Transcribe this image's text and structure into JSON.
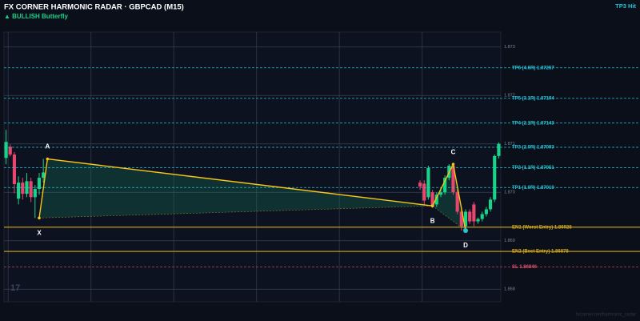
{
  "chart_data": {
    "type": "candlestick",
    "title": "FX CORNER HARMONIC RADAR  ·  GBPCAD (M15)",
    "subtitle": "▲ BULLISH  Butterfly",
    "status": "TP3 Hit",
    "watermark": "17",
    "footer": "fxcorner.net/harmonic_radar",
    "up_color": "#18d488",
    "down_color": "#e8466f",
    "xlim": [
      -0.5,
      119.5
    ],
    "xgrid": [
      0.5,
      20.5,
      40.5,
      60.5,
      80.5,
      100.5
    ],
    "ylim": [
      1.86774,
      1.87331
    ],
    "yticks": [
      1.868,
      1.869,
      {
        "value": 1.87,
        "label": "1.870"
      },
      1.871,
      1.872,
      1.873
    ],
    "grid": true,
    "candles": {
      "x": [
        0,
        1,
        2,
        3,
        4,
        5,
        6,
        7,
        8,
        9,
        100,
        101,
        102,
        103,
        104,
        105,
        106,
        107,
        108,
        109,
        110,
        111,
        112,
        113,
        114,
        115,
        116,
        117,
        118,
        119
      ],
      "open": [
        1.87071,
        1.87094,
        1.87078,
        1.86987,
        1.8702,
        1.86997,
        1.87023,
        1.8699,
        1.87007,
        1.8703,
        1.8702,
        1.87018,
        1.8699,
        1.87,
        1.86975,
        1.86995,
        1.87,
        1.8703,
        1.87055,
        1.87,
        1.8696,
        1.8693,
        1.8696,
        1.86975,
        1.8694,
        1.86945,
        1.86955,
        1.86965,
        1.86985,
        1.87075
      ],
      "high": [
        1.87129,
        1.87099,
        1.87083,
        1.87033,
        1.8703,
        1.8704,
        1.8703,
        1.87015,
        1.8704,
        1.87069,
        1.87025,
        1.87025,
        1.87055,
        1.87005,
        1.87,
        1.8701,
        1.87035,
        1.87058,
        1.87058,
        1.87005,
        1.86965,
        1.86965,
        1.86965,
        1.8698,
        1.86948,
        1.8696,
        1.8697,
        1.8699,
        1.87078,
        1.87103
      ],
      "low": [
        1.87058,
        1.87074,
        1.86998,
        1.86975,
        1.86985,
        1.8699,
        1.8698,
        1.86947,
        1.86995,
        1.8702,
        1.87005,
        1.86975,
        1.86985,
        1.86968,
        1.8697,
        1.8699,
        1.86995,
        1.87025,
        1.86995,
        1.86955,
        1.86921,
        1.86921,
        1.86935,
        1.8693,
        1.86935,
        1.8694,
        1.8695,
        1.8696,
        1.8698,
        1.8707
      ],
      "close": [
        1.87104,
        1.87078,
        1.87017,
        1.8702,
        1.86997,
        1.87023,
        1.8699,
        1.87007,
        1.8703,
        1.87041,
        1.87012,
        1.86983,
        1.8705,
        1.86972,
        1.86995,
        1.87,
        1.8703,
        1.87055,
        1.87,
        1.8696,
        1.8693,
        1.8696,
        1.8694,
        1.8694,
        1.86945,
        1.86955,
        1.86965,
        1.86985,
        1.87075,
        1.871
      ]
    },
    "pattern": {
      "color": "#f5c518",
      "points": [
        {
          "label": "X",
          "x": 8,
          "price": 1.86947
        },
        {
          "label": "A",
          "x": 10,
          "price": 1.87069
        },
        {
          "label": "B",
          "x": 103,
          "price": 1.86972
        },
        {
          "label": "C",
          "x": 108,
          "price": 1.87058
        },
        {
          "label": "D",
          "x": 111,
          "price": 1.86921
        }
      ]
    },
    "levels": [
      {
        "label": "TP6 (4.6R)  1.87257",
        "value": 1.87257,
        "color": "#22c6d8",
        "style": "dashed"
      },
      {
        "label": "TP5 (3.1R)  1.87194",
        "value": 1.87194,
        "color": "#22c6d8",
        "style": "dashed"
      },
      {
        "label": "TP4 (2.1R)  1.87143",
        "value": 1.87143,
        "color": "#22c6d8",
        "style": "dashed"
      },
      {
        "label": "TP3 (2.0R)  1.87093",
        "value": 1.87093,
        "color": "#22c6d8",
        "style": "dashed"
      },
      {
        "label": "TP2 (1.1R)  1.87051",
        "value": 1.87051,
        "color": "#22c6d8",
        "style": "dashed"
      },
      {
        "label": "TP1 (1.0R)  1.87010",
        "value": 1.8701,
        "color": "#22c6d8",
        "style": "dashed"
      },
      {
        "label": "EN1 (Worst Entry)  1.86928",
        "value": 1.86928,
        "color": "#d4a91c",
        "style": "solid"
      },
      {
        "label": "EN2 (Best Entry)  1.86878",
        "value": 1.86878,
        "color": "#d4a91c",
        "style": "solid"
      },
      {
        "label": "SL  1.86846",
        "value": 1.86846,
        "color": "#e0506a",
        "style": "dashed"
      }
    ]
  }
}
